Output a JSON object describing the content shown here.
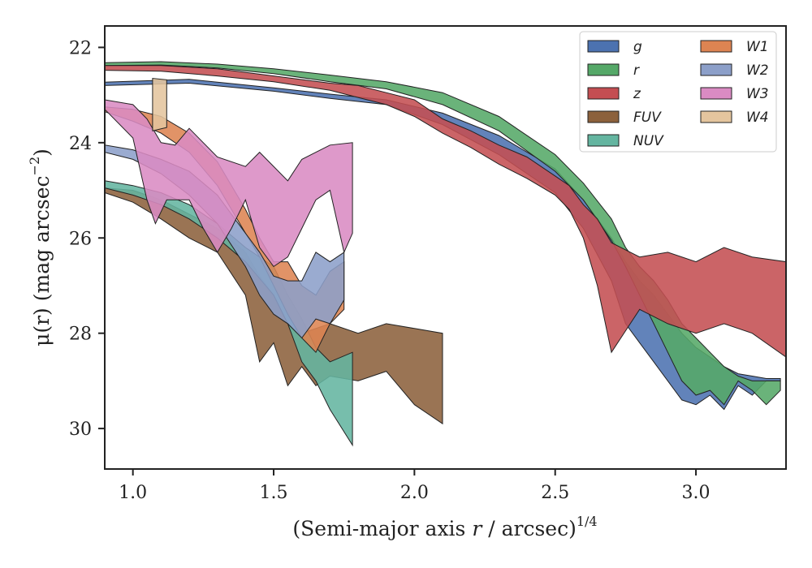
{
  "chart_data": {
    "type": "area",
    "xlabel": "(Semi-major axis r / arcsec)",
    "xlabel_var": "r",
    "xlabel_exp": "1/4",
    "ylabel": "μ(r) (mag arcsec",
    "ylabel_exp": "−2",
    "ylabel_close": ")",
    "xlim": [
      0.9,
      3.32
    ],
    "ylim": [
      30.85,
      21.55
    ],
    "y_inverted": true,
    "xticks": [
      {
        "value": 1.0,
        "label": "1.0"
      },
      {
        "value": 1.5,
        "label": "1.5"
      },
      {
        "value": 2.0,
        "label": "2.0"
      },
      {
        "value": 2.5,
        "label": "2.5"
      },
      {
        "value": 3.0,
        "label": "3.0"
      }
    ],
    "yticks": [
      {
        "value": 22,
        "label": "22"
      },
      {
        "value": 24,
        "label": "24"
      },
      {
        "value": 26,
        "label": "26"
      },
      {
        "value": 28,
        "label": "28"
      },
      {
        "value": 30,
        "label": "30"
      }
    ],
    "grid": false,
    "legend_position": "top-right",
    "legend_columns": 2,
    "series": [
      {
        "name": "g",
        "color": "#4c72b0",
        "upper": [
          [
            0.9,
            22.73
          ],
          [
            1.2,
            22.67
          ],
          [
            1.5,
            22.85
          ],
          [
            1.7,
            22.98
          ],
          [
            1.9,
            23.1
          ],
          [
            2.1,
            23.38
          ],
          [
            2.3,
            23.85
          ],
          [
            2.5,
            24.55
          ],
          [
            2.6,
            25.2
          ],
          [
            2.7,
            26.0
          ],
          [
            2.75,
            26.5
          ],
          [
            2.8,
            26.9
          ],
          [
            2.85,
            27.2
          ],
          [
            2.9,
            27.6
          ],
          [
            2.95,
            28.0
          ],
          [
            3.0,
            28.3
          ],
          [
            3.05,
            28.5
          ],
          [
            3.1,
            28.7
          ],
          [
            3.15,
            28.85
          ],
          [
            3.2,
            28.9
          ],
          [
            3.25,
            28.95
          ],
          [
            3.3,
            28.95
          ]
        ],
        "lower": [
          [
            0.9,
            22.8
          ],
          [
            1.2,
            22.75
          ],
          [
            1.5,
            22.92
          ],
          [
            1.7,
            23.07
          ],
          [
            1.9,
            23.2
          ],
          [
            2.1,
            23.62
          ],
          [
            2.3,
            24.25
          ],
          [
            2.5,
            25.05
          ],
          [
            2.6,
            25.8
          ],
          [
            2.7,
            26.9
          ],
          [
            2.75,
            27.8
          ],
          [
            2.8,
            28.2
          ],
          [
            2.85,
            28.6
          ],
          [
            2.9,
            29.0
          ],
          [
            2.95,
            29.4
          ],
          [
            3.0,
            29.5
          ],
          [
            3.05,
            29.3
          ],
          [
            3.1,
            29.6
          ],
          [
            3.15,
            29.1
          ],
          [
            3.2,
            29.3
          ],
          [
            3.25,
            29.0
          ],
          [
            3.3,
            29.0
          ]
        ]
      },
      {
        "name": "r",
        "color": "#55a868",
        "upper": [
          [
            0.9,
            22.32
          ],
          [
            1.1,
            22.3
          ],
          [
            1.3,
            22.35
          ],
          [
            1.5,
            22.45
          ],
          [
            1.7,
            22.58
          ],
          [
            1.9,
            22.72
          ],
          [
            2.1,
            22.95
          ],
          [
            2.3,
            23.45
          ],
          [
            2.5,
            24.25
          ],
          [
            2.6,
            24.85
          ],
          [
            2.7,
            25.6
          ],
          [
            2.75,
            26.2
          ],
          [
            2.8,
            26.6
          ],
          [
            2.85,
            26.9
          ],
          [
            2.9,
            27.3
          ],
          [
            2.95,
            27.8
          ],
          [
            3.0,
            28.1
          ],
          [
            3.05,
            28.4
          ],
          [
            3.1,
            28.7
          ],
          [
            3.15,
            28.9
          ],
          [
            3.2,
            29.0
          ],
          [
            3.25,
            29.0
          ],
          [
            3.3,
            29.0
          ]
        ],
        "lower": [
          [
            0.9,
            22.38
          ],
          [
            1.1,
            22.37
          ],
          [
            1.3,
            22.43
          ],
          [
            1.5,
            22.55
          ],
          [
            1.7,
            22.72
          ],
          [
            1.9,
            22.87
          ],
          [
            2.1,
            23.2
          ],
          [
            2.3,
            23.75
          ],
          [
            2.5,
            24.6
          ],
          [
            2.6,
            25.2
          ],
          [
            2.7,
            26.05
          ],
          [
            2.75,
            26.6
          ],
          [
            2.8,
            27.2
          ],
          [
            2.85,
            27.8
          ],
          [
            2.9,
            28.4
          ],
          [
            2.95,
            29.0
          ],
          [
            3.0,
            29.3
          ],
          [
            3.05,
            29.2
          ],
          [
            3.1,
            29.5
          ],
          [
            3.15,
            29.0
          ],
          [
            3.2,
            29.2
          ],
          [
            3.25,
            29.5
          ],
          [
            3.3,
            29.2
          ]
        ]
      },
      {
        "name": "z",
        "color": "#c44e52",
        "upper": [
          [
            0.9,
            22.38
          ],
          [
            1.1,
            22.38
          ],
          [
            1.3,
            22.45
          ],
          [
            1.5,
            22.6
          ],
          [
            1.7,
            22.75
          ],
          [
            1.8,
            22.8
          ],
          [
            1.9,
            22.95
          ],
          [
            2.0,
            23.1
          ],
          [
            2.1,
            23.5
          ],
          [
            2.2,
            23.75
          ],
          [
            2.3,
            24.05
          ],
          [
            2.4,
            24.3
          ],
          [
            2.5,
            24.7
          ],
          [
            2.55,
            24.9
          ],
          [
            2.6,
            25.3
          ],
          [
            2.65,
            25.6
          ],
          [
            2.7,
            26.1
          ],
          [
            2.8,
            26.4
          ],
          [
            2.9,
            26.3
          ],
          [
            3.0,
            26.5
          ],
          [
            3.1,
            26.2
          ],
          [
            3.2,
            26.4
          ],
          [
            3.32,
            26.5
          ]
        ],
        "lower": [
          [
            0.9,
            22.48
          ],
          [
            1.1,
            22.5
          ],
          [
            1.3,
            22.6
          ],
          [
            1.5,
            22.72
          ],
          [
            1.7,
            22.9
          ],
          [
            1.8,
            23.05
          ],
          [
            1.9,
            23.2
          ],
          [
            2.0,
            23.45
          ],
          [
            2.1,
            23.8
          ],
          [
            2.2,
            24.1
          ],
          [
            2.3,
            24.45
          ],
          [
            2.4,
            24.75
          ],
          [
            2.5,
            25.1
          ],
          [
            2.55,
            25.4
          ],
          [
            2.6,
            26.0
          ],
          [
            2.65,
            27.0
          ],
          [
            2.7,
            28.4
          ],
          [
            2.8,
            27.5
          ],
          [
            2.9,
            27.8
          ],
          [
            3.0,
            28.0
          ],
          [
            3.1,
            27.8
          ],
          [
            3.2,
            28.0
          ],
          [
            3.32,
            28.5
          ]
        ]
      },
      {
        "name": "FUV",
        "color": "#8c613c",
        "upper": [
          [
            0.9,
            24.95
          ],
          [
            1.0,
            25.0
          ],
          [
            1.1,
            25.2
          ],
          [
            1.2,
            25.5
          ],
          [
            1.3,
            25.8
          ],
          [
            1.4,
            26.3
          ],
          [
            1.45,
            26.8
          ],
          [
            1.5,
            27.2
          ],
          [
            1.55,
            27.8
          ],
          [
            1.6,
            28.0
          ],
          [
            1.65,
            27.9
          ],
          [
            1.7,
            27.8
          ],
          [
            1.8,
            28.0
          ],
          [
            1.9,
            27.8
          ],
          [
            2.0,
            27.9
          ],
          [
            2.1,
            28.0
          ]
        ],
        "lower": [
          [
            0.9,
            25.05
          ],
          [
            1.0,
            25.25
          ],
          [
            1.1,
            25.6
          ],
          [
            1.2,
            26.0
          ],
          [
            1.3,
            26.3
          ],
          [
            1.4,
            27.2
          ],
          [
            1.45,
            28.6
          ],
          [
            1.5,
            28.2
          ],
          [
            1.55,
            29.1
          ],
          [
            1.6,
            28.7
          ],
          [
            1.65,
            29.1
          ],
          [
            1.7,
            28.9
          ],
          [
            1.8,
            29.0
          ],
          [
            1.9,
            28.8
          ],
          [
            2.0,
            29.5
          ],
          [
            2.1,
            29.9
          ]
        ]
      },
      {
        "name": "NUV",
        "color": "#64b5a0",
        "upper": [
          [
            0.9,
            24.8
          ],
          [
            1.0,
            24.9
          ],
          [
            1.1,
            25.05
          ],
          [
            1.2,
            25.3
          ],
          [
            1.3,
            25.7
          ],
          [
            1.4,
            26.2
          ],
          [
            1.5,
            26.6
          ],
          [
            1.55,
            27.2
          ],
          [
            1.6,
            27.7
          ],
          [
            1.65,
            28.3
          ],
          [
            1.7,
            28.6
          ],
          [
            1.78,
            28.4
          ]
        ],
        "lower": [
          [
            0.9,
            24.95
          ],
          [
            1.0,
            25.1
          ],
          [
            1.1,
            25.3
          ],
          [
            1.2,
            25.6
          ],
          [
            1.3,
            26.0
          ],
          [
            1.4,
            26.5
          ],
          [
            1.5,
            27.2
          ],
          [
            1.55,
            27.8
          ],
          [
            1.6,
            28.6
          ],
          [
            1.65,
            29.0
          ],
          [
            1.7,
            29.6
          ],
          [
            1.78,
            30.35
          ]
        ]
      },
      {
        "name": "W1",
        "color": "#dd8452",
        "upper": [
          [
            0.9,
            23.25
          ],
          [
            1.0,
            23.3
          ],
          [
            1.1,
            23.45
          ],
          [
            1.2,
            23.8
          ],
          [
            1.3,
            24.4
          ],
          [
            1.4,
            25.4
          ],
          [
            1.45,
            26.0
          ],
          [
            1.5,
            26.5
          ],
          [
            1.55,
            26.5
          ],
          [
            1.6,
            27.0
          ],
          [
            1.65,
            27.2
          ],
          [
            1.7,
            26.7
          ],
          [
            1.75,
            26.5
          ]
        ],
        "lower": [
          [
            0.9,
            23.35
          ],
          [
            1.0,
            23.55
          ],
          [
            1.1,
            23.8
          ],
          [
            1.2,
            24.2
          ],
          [
            1.3,
            24.9
          ],
          [
            1.4,
            25.9
          ],
          [
            1.45,
            26.4
          ],
          [
            1.5,
            27.0
          ],
          [
            1.55,
            27.6
          ],
          [
            1.6,
            28.1
          ],
          [
            1.65,
            28.4
          ],
          [
            1.7,
            27.8
          ],
          [
            1.75,
            27.5
          ]
        ]
      },
      {
        "name": "W2",
        "color": "#8c9fc9",
        "upper": [
          [
            0.9,
            24.05
          ],
          [
            1.0,
            24.15
          ],
          [
            1.1,
            24.35
          ],
          [
            1.2,
            24.6
          ],
          [
            1.3,
            25.1
          ],
          [
            1.4,
            25.9
          ],
          [
            1.45,
            26.3
          ],
          [
            1.5,
            26.8
          ],
          [
            1.55,
            26.9
          ],
          [
            1.6,
            26.9
          ],
          [
            1.65,
            26.3
          ],
          [
            1.7,
            26.5
          ],
          [
            1.75,
            26.3
          ]
        ],
        "lower": [
          [
            0.9,
            24.2
          ],
          [
            1.0,
            24.35
          ],
          [
            1.1,
            24.65
          ],
          [
            1.2,
            25.1
          ],
          [
            1.3,
            25.7
          ],
          [
            1.4,
            26.6
          ],
          [
            1.45,
            27.2
          ],
          [
            1.5,
            27.6
          ],
          [
            1.55,
            27.8
          ],
          [
            1.6,
            28.1
          ],
          [
            1.65,
            27.7
          ],
          [
            1.7,
            27.8
          ],
          [
            1.75,
            27.3
          ]
        ]
      },
      {
        "name": "W3",
        "color": "#da8bc3",
        "upper": [
          [
            0.9,
            23.1
          ],
          [
            1.0,
            23.2
          ],
          [
            1.05,
            23.5
          ],
          [
            1.1,
            24.0
          ],
          [
            1.15,
            24.05
          ],
          [
            1.2,
            23.7
          ],
          [
            1.25,
            24.0
          ],
          [
            1.3,
            24.3
          ],
          [
            1.4,
            24.5
          ],
          [
            1.45,
            24.2
          ],
          [
            1.55,
            24.8
          ],
          [
            1.6,
            24.35
          ],
          [
            1.7,
            24.05
          ],
          [
            1.78,
            24.0
          ]
        ],
        "lower": [
          [
            0.9,
            23.3
          ],
          [
            1.0,
            23.9
          ],
          [
            1.05,
            25.2
          ],
          [
            1.08,
            25.7
          ],
          [
            1.12,
            25.2
          ],
          [
            1.2,
            25.2
          ],
          [
            1.25,
            25.8
          ],
          [
            1.3,
            26.3
          ],
          [
            1.35,
            25.8
          ],
          [
            1.4,
            25.2
          ],
          [
            1.45,
            26.2
          ],
          [
            1.5,
            26.6
          ],
          [
            1.55,
            26.4
          ],
          [
            1.6,
            25.8
          ],
          [
            1.65,
            25.2
          ],
          [
            1.7,
            25.0
          ],
          [
            1.75,
            26.3
          ],
          [
            1.78,
            25.9
          ]
        ]
      },
      {
        "name": "W4",
        "color": "#e4c59e",
        "upper": [
          [
            1.07,
            22.65
          ],
          [
            1.12,
            22.68
          ]
        ],
        "lower": [
          [
            1.07,
            23.75
          ],
          [
            1.12,
            23.68
          ]
        ]
      }
    ]
  }
}
